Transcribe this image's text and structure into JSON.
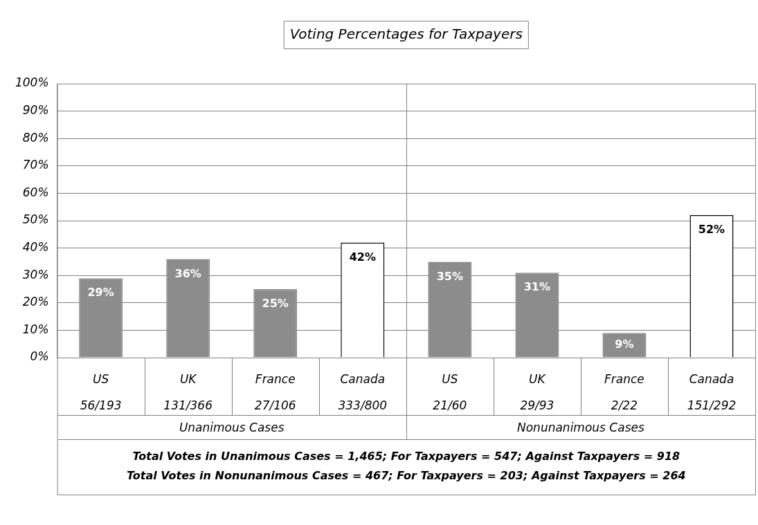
{
  "chart_data": {
    "type": "bar",
    "title": "Voting Percentages for Taxpayers",
    "categories": [
      "US\n56/193",
      "UK\n131/366",
      "France\n27/106",
      "Canada\n333/800",
      "US\n21/60",
      "UK\n29/93",
      "France\n2/22",
      "Canada\n151/292"
    ],
    "values": [
      29,
      36,
      25,
      42,
      35,
      31,
      9,
      52
    ],
    "colors": [
      "#8c8c8c",
      "#8c8c8c",
      "#8c8c8c",
      "#ffffff",
      "#8c8c8c",
      "#8c8c8c",
      "#8c8c8c",
      "#ffffff"
    ],
    "value_labels": [
      "29%",
      "36%",
      "25%",
      "42%",
      "35%",
      "31%",
      "9%",
      "52%"
    ],
    "ylim": [
      0,
      100
    ],
    "yticks": [
      {
        "value": 0,
        "label": "0%"
      },
      {
        "value": 10,
        "label": "10%"
      },
      {
        "value": 20,
        "label": "20%"
      },
      {
        "value": 30,
        "label": "30%"
      },
      {
        "value": 40,
        "label": "40%"
      },
      {
        "value": 50,
        "label": "50%"
      },
      {
        "value": 60,
        "label": "60%"
      },
      {
        "value": 70,
        "label": "70%"
      },
      {
        "value": 80,
        "label": "80%"
      },
      {
        "value": 90,
        "label": "90%"
      },
      {
        "value": 100,
        "label": "100%"
      }
    ],
    "grid": "y",
    "legend": false,
    "annotations": [
      "Unanimous Cases",
      "Nonunanimous Cases",
      "Total Votes in Unanimous Cases = 1,465; For Taxpayers = 547; Against Taxpayers = 918",
      "Total Votes in Nonunanimous Cases = 467; For Taxpayers = 203; Against Taxpayers = 264"
    ]
  }
}
